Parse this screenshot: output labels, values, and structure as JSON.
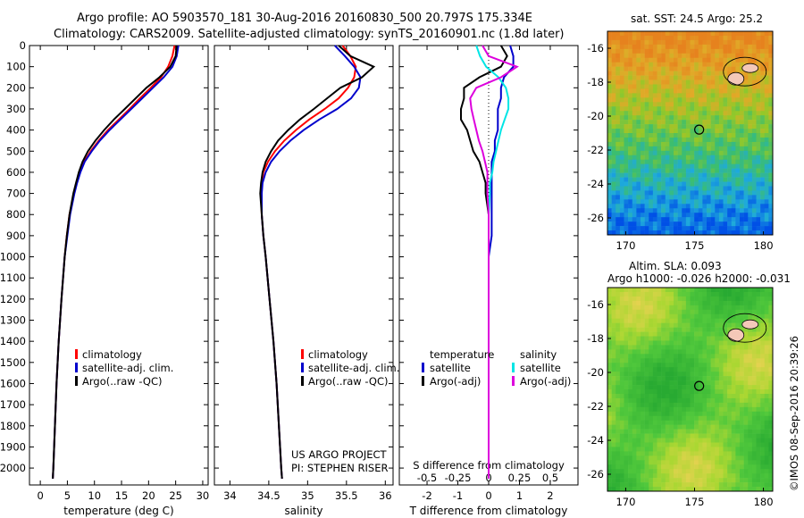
{
  "header": {
    "line1": "Argo profile: AO 5903570_181 30-Aug-2016 20160830_500 20.797S 175.334E",
    "line2": "Climatology: CARS2009. Satellite-adjusted climatology: synTS_20160901.nc (1.8d later)"
  },
  "colors": {
    "climatology": "#ff0000",
    "satellite": "#0000cc",
    "argo": "#000000",
    "sat_salinity": "#00e5e5",
    "argo_salinity_adj": "#dd00dd"
  },
  "legend": {
    "climatology": "climatology",
    "satellite_adj": "satellite-adj. clim.",
    "argo_raw": "Argo(..raw -QC)",
    "temperature_head": "temperature",
    "salinity_head": "salinity",
    "satellite": "satellite",
    "argo_adj": "Argo(-adj)"
  },
  "credits": {
    "project": "US ARGO PROJECT",
    "pi": "PI: STEPHEN RISER"
  },
  "side_label": "©IMOS 08-Sep-2016 20:39:26",
  "maps": {
    "sst_title": "sat. SST: 24.5 Argo: 25.2",
    "sla_title1": "Altim. SLA: 0.093",
    "sla_title2": "Argo h1000: -0.026 h2000: -0.031",
    "float_position": {
      "lon": 175.334,
      "lat": -20.797
    },
    "lon_ticks": [
      "170",
      "175",
      "180"
    ],
    "lat_ticks": [
      "-16",
      "-18",
      "-20",
      "-22",
      "-24",
      "-26"
    ]
  },
  "chart_data": [
    {
      "type": "line",
      "xlabel": "temperature (deg C)",
      "xlim": [
        -2,
        31
      ],
      "xticks": [
        "0",
        "5",
        "10",
        "15",
        "20",
        "25",
        "30"
      ],
      "ylim": [
        2080,
        0
      ],
      "yticks": [
        "0",
        "100",
        "200",
        "300",
        "400",
        "500",
        "600",
        "700",
        "800",
        "900",
        "1000",
        "1100",
        "1200",
        "1300",
        "1400",
        "1500",
        "1600",
        "1700",
        "1800",
        "1900",
        "2000"
      ],
      "depth": [
        0,
        50,
        100,
        150,
        200,
        250,
        300,
        350,
        400,
        450,
        500,
        550,
        600,
        650,
        700,
        800,
        900,
        1000,
        1200,
        1400,
        1600,
        1800,
        2000,
        2050
      ],
      "series": [
        {
          "name": "climatology",
          "values": [
            24.8,
            24.4,
            23.6,
            22.3,
            20.4,
            18.4,
            16.5,
            14.5,
            12.5,
            10.8,
            9.3,
            8.1,
            7.3,
            6.7,
            6.2,
            5.4,
            4.9,
            4.5,
            3.9,
            3.4,
            3.0,
            2.7,
            2.4,
            2.3
          ]
        },
        {
          "name": "satellite-adj. clim.",
          "values": [
            25.5,
            25.2,
            24.4,
            22.8,
            20.8,
            18.8,
            16.8,
            14.8,
            12.8,
            11.0,
            9.5,
            8.2,
            7.4,
            6.8,
            6.3,
            5.5,
            5.0,
            4.5,
            3.9,
            3.4,
            3.0,
            2.7,
            2.4,
            2.3
          ]
        },
        {
          "name": "Argo(..raw -QC)",
          "values": [
            25.2,
            25.0,
            24.0,
            22.0,
            19.6,
            17.6,
            15.6,
            13.6,
            11.8,
            10.2,
            8.8,
            7.8,
            7.1,
            6.6,
            6.1,
            5.4,
            4.9,
            4.5,
            3.9,
            3.4,
            3.0,
            2.7,
            2.4,
            2.3
          ]
        }
      ]
    },
    {
      "type": "line",
      "xlabel": "salinity",
      "xlim": [
        33.8,
        36.1
      ],
      "xticks": [
        "34",
        "34.5",
        "35",
        "35.5",
        "36"
      ],
      "ylim": [
        2080,
        0
      ],
      "depth": [
        0,
        50,
        100,
        150,
        200,
        250,
        300,
        350,
        400,
        450,
        500,
        550,
        600,
        650,
        700,
        800,
        900,
        1000,
        1200,
        1400,
        1600,
        1800,
        2000,
        2050
      ],
      "series": [
        {
          "name": "climatology",
          "values": [
            35.45,
            35.55,
            35.62,
            35.6,
            35.52,
            35.4,
            35.22,
            35.02,
            34.85,
            34.7,
            34.58,
            34.49,
            34.43,
            34.41,
            34.4,
            34.41,
            34.43,
            34.46,
            34.51,
            34.56,
            34.6,
            34.63,
            34.66,
            34.67
          ]
        },
        {
          "name": "satellite-adj. clim.",
          "values": [
            35.35,
            35.48,
            35.6,
            35.68,
            35.66,
            35.56,
            35.38,
            35.15,
            34.95,
            34.78,
            34.64,
            34.53,
            34.46,
            34.42,
            34.41,
            34.41,
            34.43,
            34.46,
            34.51,
            34.56,
            34.6,
            34.63,
            34.66,
            34.67
          ]
        },
        {
          "name": "Argo(..raw -QC)",
          "values": [
            35.4,
            35.55,
            35.85,
            35.7,
            35.42,
            35.25,
            35.08,
            34.9,
            34.75,
            34.62,
            34.53,
            34.46,
            34.42,
            34.4,
            34.39,
            34.41,
            34.43,
            34.46,
            34.51,
            34.56,
            34.6,
            34.63,
            34.66,
            34.67
          ]
        }
      ]
    },
    {
      "type": "line",
      "xlabel": "T difference from climatology",
      "xlabel_top": "S difference from climatology",
      "xlim": [
        -2.9,
        2.9
      ],
      "xticks": [
        "-2",
        "-1",
        "0",
        "1",
        "2"
      ],
      "xticks_top": [
        "-0.5",
        "-0.25",
        "0",
        "0.25",
        "0.5"
      ],
      "ylim": [
        2080,
        0
      ],
      "depth": [
        0,
        50,
        100,
        150,
        200,
        250,
        300,
        350,
        400,
        450,
        500,
        550,
        600,
        650,
        700,
        800,
        900,
        1000,
        1200,
        1400,
        1600,
        1800,
        2000,
        2050
      ],
      "series": [
        {
          "name": "temperature satellite",
          "values": [
            0.7,
            0.8,
            0.8,
            0.5,
            0.4,
            0.4,
            0.3,
            0.3,
            0.3,
            0.2,
            0.2,
            0.1,
            0.1,
            0.1,
            0.1,
            0.1,
            0.1,
            0.0,
            0.0,
            0.0,
            0.0,
            0.0,
            0.0,
            0.0
          ]
        },
        {
          "name": "temperature Argo(-adj)",
          "values": [
            0.4,
            0.6,
            0.4,
            -0.3,
            -0.8,
            -0.8,
            -0.9,
            -0.9,
            -0.7,
            -0.6,
            -0.5,
            -0.3,
            -0.2,
            -0.1,
            -0.1,
            0.0,
            0.0,
            0.0,
            0.0,
            0.0,
            0.0,
            0.0,
            0.0,
            0.0
          ]
        },
        {
          "name": "salinity satellite",
          "values": [
            -0.1,
            -0.07,
            -0.02,
            0.08,
            0.14,
            0.16,
            0.16,
            0.13,
            0.1,
            0.08,
            0.06,
            0.04,
            0.03,
            0.01,
            0.01,
            0.0,
            0.0,
            0.0,
            0.0,
            0.0,
            0.0,
            0.0,
            0.0,
            0.0
          ]
        },
        {
          "name": "salinity Argo(-adj)",
          "values": [
            -0.05,
            0.0,
            0.23,
            0.1,
            -0.1,
            -0.15,
            -0.14,
            -0.12,
            -0.1,
            -0.08,
            -0.05,
            -0.03,
            -0.01,
            -0.01,
            -0.01,
            0.0,
            0.0,
            0.0,
            0.0,
            0.0,
            0.0,
            0.0,
            0.0,
            0.0
          ]
        }
      ]
    }
  ]
}
